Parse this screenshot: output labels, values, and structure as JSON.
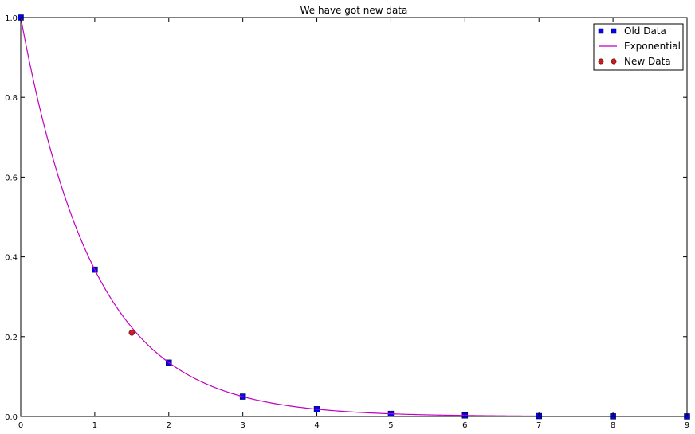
{
  "chart_data": {
    "type": "line",
    "title": "We have got new data",
    "xlabel": "",
    "ylabel": "",
    "xlim": [
      0,
      9
    ],
    "ylim": [
      0,
      1.0
    ],
    "xticks": [
      "0",
      "1",
      "2",
      "3",
      "4",
      "5",
      "6",
      "7",
      "8",
      "9"
    ],
    "yticks": [
      "0.0",
      "0.2",
      "0.4",
      "0.6",
      "0.8",
      "1.0"
    ],
    "grid": false,
    "legend_position": "top-right",
    "series": [
      {
        "name": "Old Data",
        "kind": "markers",
        "marker": "square",
        "color": "#0000ff",
        "x": [
          0,
          1,
          2,
          3,
          4,
          5,
          6,
          7,
          8,
          9
        ],
        "y": [
          1.0,
          0.368,
          0.135,
          0.0498,
          0.0183,
          0.0067,
          0.0025,
          0.0009,
          0.0003,
          0.0001
        ]
      },
      {
        "name": "Exponential",
        "kind": "line",
        "color": "#bf00bf",
        "function": "exp(-x)",
        "x": [
          0,
          9
        ]
      },
      {
        "name": "New Data",
        "kind": "markers",
        "marker": "circle",
        "color": "#d11a1a",
        "x": [
          1.5
        ],
        "y": [
          0.21
        ]
      }
    ]
  }
}
